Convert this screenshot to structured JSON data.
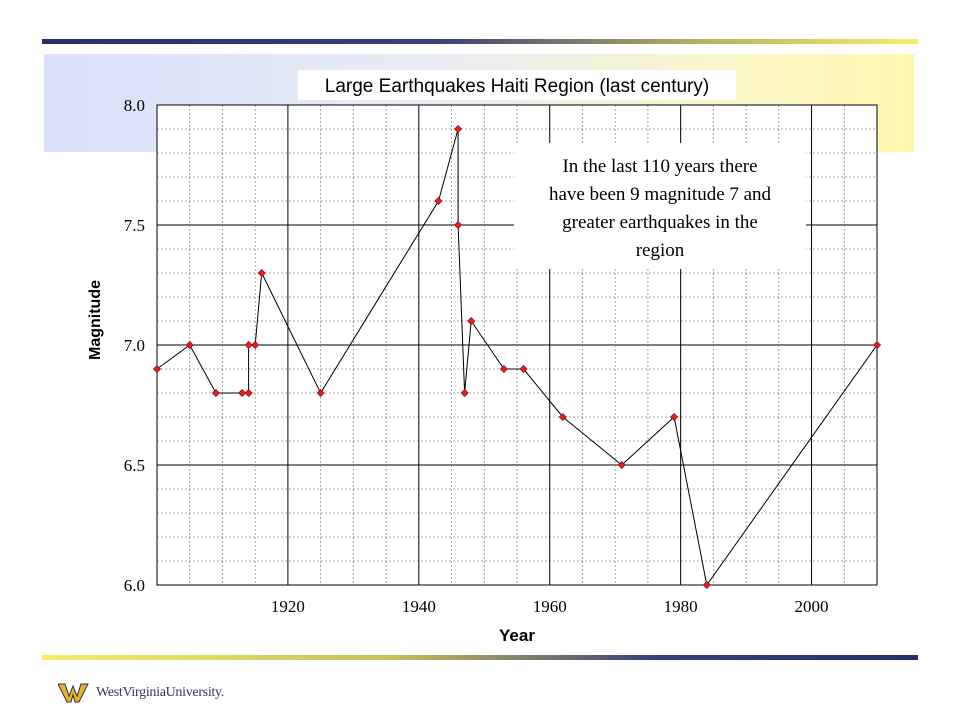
{
  "branding": {
    "name": "WestVirginiaUniversity."
  },
  "colors": {
    "marker_fill": "#e02020",
    "marker_stroke": "#8a0000",
    "line": "#000000",
    "grid": "#8a8a8a",
    "accent_navy": "#26306e",
    "accent_gold": "#f5ee6a"
  },
  "chart_data": {
    "type": "line",
    "title": "Large Earthquakes Haiti Region (last century)",
    "xlabel": "Year",
    "ylabel": "Magnitude",
    "xlim": [
      1900,
      2010
    ],
    "ylim": [
      6.0,
      8.0
    ],
    "x_ticks": [
      1920,
      1940,
      1960,
      1980,
      2000
    ],
    "y_ticks": [
      "6.0",
      "6.5",
      "7.0",
      "7.5",
      "8.0"
    ],
    "grid": true,
    "annotation": "In the last 110 years there have been 9 magnitude 7 and greater earthquakes in the region",
    "series": [
      {
        "x": [
          1900,
          1905,
          1909,
          1913,
          1914,
          1914,
          1915,
          1916,
          1925,
          1943,
          1946,
          1946,
          1947,
          1948,
          1953,
          1956,
          1962,
          1971,
          1979,
          1984,
          2010
        ],
        "y": [
          6.9,
          7.0,
          6.8,
          6.8,
          6.8,
          7.0,
          7.0,
          7.3,
          6.8,
          7.6,
          7.9,
          7.5,
          6.8,
          7.1,
          6.9,
          6.9,
          6.7,
          6.5,
          6.7,
          6.0,
          7.0
        ]
      }
    ]
  }
}
